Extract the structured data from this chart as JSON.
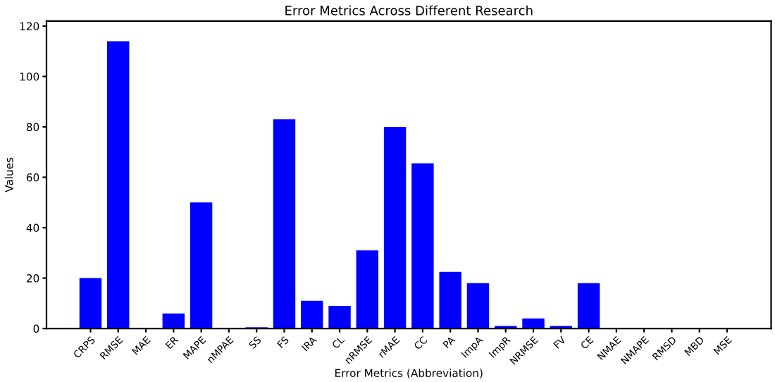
{
  "chart_data": {
    "type": "bar",
    "title": "Error Metrics Across Different Research",
    "xlabel": "Error Metrics (Abbreviation)",
    "ylabel": "Values",
    "categories": [
      "CRPS",
      "RMSE",
      "MAE",
      "ER",
      "MAPE",
      "nMPAE",
      "SS",
      "FS",
      "IRA",
      "CL",
      "nRMSE",
      "rMAE",
      "CC",
      "PA",
      "ImpA",
      "ImpR",
      "NRMSE",
      "FV",
      "CE",
      "NMAE",
      "NMAPE",
      "RMSD",
      "MBD",
      "MSE"
    ],
    "values": [
      20,
      114,
      0,
      6,
      50,
      0,
      0.5,
      83,
      11,
      9,
      31,
      80,
      65.5,
      22.5,
      18,
      1,
      4,
      1,
      18,
      0,
      0,
      0,
      0,
      0
    ],
    "color": "#0000ff",
    "ylim": [
      0,
      122
    ],
    "yticks": [
      0,
      20,
      40,
      60,
      80,
      100,
      120
    ],
    "grid": false
  }
}
